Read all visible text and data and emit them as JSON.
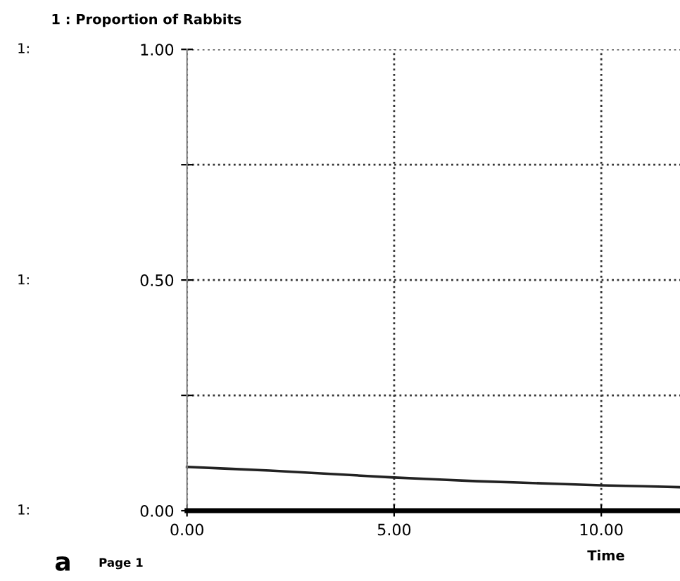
{
  "chart_data": {
    "type": "line",
    "title": "1 : Proportion of Rabbits",
    "xlabel": "Time",
    "x": [
      0,
      1,
      2,
      3,
      4,
      5,
      6,
      7,
      8,
      9,
      10,
      11,
      11.9
    ],
    "series": [
      {
        "color": "#222222",
        "values": [
          0.095,
          0.091,
          0.087,
          0.082,
          0.077,
          0.072,
          0.068,
          0.064,
          0.061,
          0.058,
          0.055,
          0.053,
          0.051
        ]
      }
    ],
    "xlim": [
      0,
      11.9
    ],
    "ylim": [
      0,
      1
    ],
    "xticks": [
      {
        "value": 0,
        "label": "0.00"
      },
      {
        "value": 5,
        "label": "5.00"
      },
      {
        "value": 10,
        "label": "10.00"
      }
    ],
    "yticks": [
      {
        "value": 0,
        "label": "0.00"
      },
      {
        "value": 0.25,
        "label": null
      },
      {
        "value": 0.5,
        "label": "0.50"
      },
      {
        "value": 0.75,
        "label": null
      },
      {
        "value": 1,
        "label": "1.00"
      }
    ],
    "grid": true,
    "line_style": "solid",
    "marker": "none",
    "annotations": [
      "1:",
      "1:",
      "1:",
      "a",
      "Page 1"
    ]
  }
}
